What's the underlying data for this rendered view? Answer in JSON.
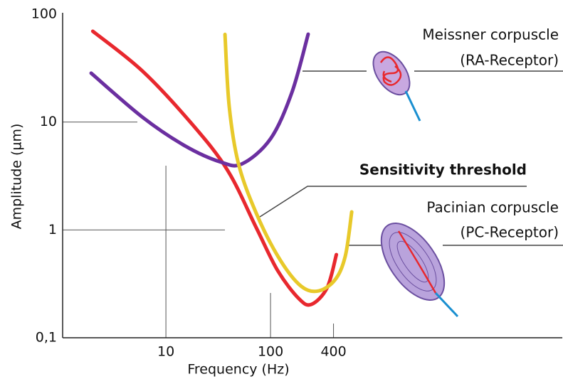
{
  "chart_data": {
    "type": "line",
    "x_label": "Frequency (Hz)",
    "y_label": "Amplitude (µm)",
    "log_x": true,
    "log_y": true,
    "xlim": [
      1.03,
      61500
    ],
    "ylim": [
      0.1,
      100
    ],
    "xticks": [
      10,
      100,
      400
    ],
    "yticks": [
      100,
      10,
      1,
      {
        "value": 0.1,
        "label": "0,1"
      }
    ],
    "series": [
      {
        "color": "#e8282e",
        "x": [
          2.0,
          5.97,
          17.9,
          39,
          73,
          117,
          187,
          246,
          347,
          426
        ],
        "values": [
          69.5,
          29.7,
          9.5,
          3.55,
          1.05,
          0.42,
          0.23,
          0.204,
          0.29,
          0.59
        ]
      },
      {
        "color": "#6b2fa0",
        "x": [
          1.93,
          5.97,
          15.3,
          33.4,
          53.5,
          100,
          160,
          229
        ],
        "values": [
          28.4,
          11.1,
          6.0,
          4.26,
          4.1,
          7.0,
          18.8,
          65.3
        ]
      },
      {
        "color": "#e8c92a",
        "x": [
          36.7,
          40.3,
          49.4,
          73,
          117,
          187,
          276,
          409,
          518,
          597
        ],
        "values": [
          65,
          13.9,
          4.1,
          1.43,
          0.575,
          0.313,
          0.27,
          0.34,
          0.57,
          1.47
        ]
      }
    ],
    "annotations": [
      {
        "lines": [
          "Meissner corpuscle",
          "(RA-Receptor)"
        ]
      },
      {
        "lines": [
          "Sensitivity threshold"
        ]
      },
      {
        "lines": [
          "Pacinian corpuscle",
          "(PC-Receptor)"
        ]
      }
    ]
  }
}
